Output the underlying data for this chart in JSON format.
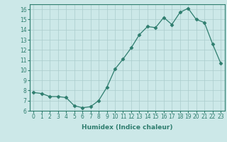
{
  "x": [
    0,
    1,
    2,
    3,
    4,
    5,
    6,
    7,
    8,
    9,
    10,
    11,
    12,
    13,
    14,
    15,
    16,
    17,
    18,
    19,
    20,
    21,
    22,
    23
  ],
  "y": [
    7.8,
    7.7,
    7.4,
    7.4,
    7.3,
    6.5,
    6.3,
    6.4,
    7.0,
    8.3,
    10.1,
    11.1,
    12.2,
    13.5,
    14.3,
    14.2,
    15.2,
    14.5,
    15.7,
    16.1,
    15.0,
    14.7,
    12.6,
    10.7
  ],
  "title": "",
  "xlabel": "Humidex (Indice chaleur)",
  "ylabel": "",
  "xlim": [
    -0.5,
    23.5
  ],
  "ylim": [
    6,
    16.5
  ],
  "yticks": [
    6,
    7,
    8,
    9,
    10,
    11,
    12,
    13,
    14,
    15,
    16
  ],
  "xticks": [
    0,
    1,
    2,
    3,
    4,
    5,
    6,
    7,
    8,
    9,
    10,
    11,
    12,
    13,
    14,
    15,
    16,
    17,
    18,
    19,
    20,
    21,
    22,
    23
  ],
  "line_color": "#2e7d6e",
  "marker": "D",
  "marker_size": 2.5,
  "bg_color": "#cce8e8",
  "grid_color": "#aacccc",
  "label_fontsize": 6.5,
  "tick_fontsize": 5.5
}
